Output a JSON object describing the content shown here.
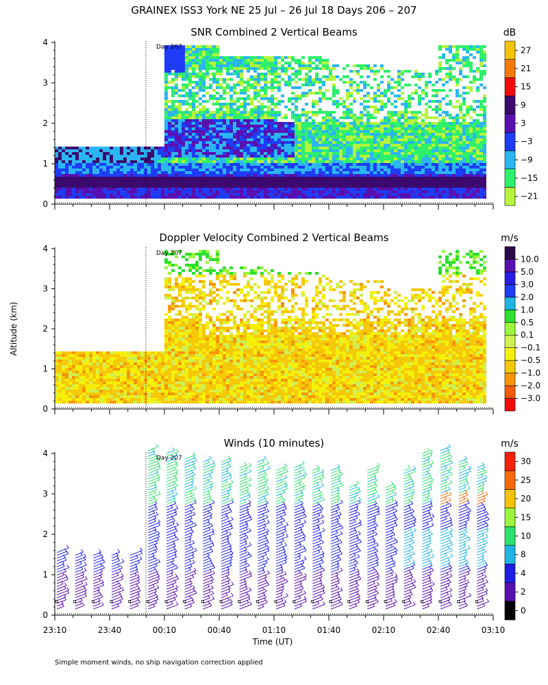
{
  "title": "GRAINEX ISS3 York NE  25 Jul – 26 Jul 18 Days 206 – 207",
  "footnote": "Simple moment winds, no ship navigation correction applied",
  "colors": {
    "snr": [
      "#b6f53c",
      "#2df06b",
      "#2bb6f2",
      "#1e3cf5",
      "#5a10b0",
      "#3c0a6e",
      "#f50a0a",
      "#f57a0a",
      "#f5c30a"
    ],
    "vel": [
      "#f50a0a",
      "#f55a0a",
      "#f5960a",
      "#f5c80a",
      "#f5f00a",
      "#d0f050",
      "#9cf53c",
      "#2de02d",
      "#1fb4e6",
      "#1e3cf5",
      "#2a1ae6",
      "#5a10b0",
      "#2a0a4a"
    ],
    "wind": [
      "#000000",
      "#5a10b0",
      "#1e1ee6",
      "#1fb4e6",
      "#2de06b",
      "#9cf53c",
      "#f5c30a",
      "#f56a0a",
      "#f51e0a"
    ]
  },
  "chart_data": [
    {
      "type": "heatmap",
      "id": "snr",
      "title": "SNR Combined 2 Vertical Beams",
      "ylabel": "",
      "ylim": [
        0,
        4
      ],
      "y_ticks": [
        "0",
        "1",
        "2",
        "3",
        "4"
      ],
      "x_ticks": [
        "23:10",
        "23:40",
        "00:10",
        "00:40",
        "01:10",
        "01:40",
        "02:10",
        "02:40",
        "03:10"
      ],
      "annotation": "Day 207",
      "colorbar_unit": "dB",
      "colorbar_labels": [
        "−21",
        "−15",
        "−9",
        "−3",
        "3",
        "9",
        "15",
        "21",
        "27"
      ],
      "layers": [
        {
          "time": "23:10",
          "base_km": 0.1,
          "top_km": 1.4,
          "near_surface_dB": 9,
          "mid_dB": -9,
          "upper_dB": -15
        },
        {
          "time": "23:40",
          "base_km": 0.1,
          "top_km": 1.4,
          "near_surface_dB": 9,
          "mid_dB": 3,
          "upper_dB": -9
        },
        {
          "time": "00:10",
          "base_km": 0.1,
          "top_km": 3.9,
          "near_surface_dB": 9,
          "mid_dB": 3,
          "upper_dB": -15
        },
        {
          "time": "00:40",
          "base_km": 0.1,
          "top_km": 3.6,
          "near_surface_dB": 9,
          "mid_dB": -3,
          "upper_dB": -15
        },
        {
          "time": "01:10",
          "base_km": 0.1,
          "top_km": 3.6,
          "near_surface_dB": 9,
          "mid_dB": -3,
          "upper_dB": -15
        },
        {
          "time": "01:40",
          "base_km": 0.1,
          "top_km": 3.4,
          "near_surface_dB": 9,
          "mid_dB": -9,
          "upper_dB": -15
        },
        {
          "time": "02:10",
          "base_km": 0.1,
          "top_km": 3.3,
          "near_surface_dB": 9,
          "mid_dB": -9,
          "upper_dB": -15
        },
        {
          "time": "02:40",
          "base_km": 0.1,
          "top_km": 3.9,
          "near_surface_dB": 9,
          "mid_dB": -3,
          "upper_dB": -15
        },
        {
          "time": "03:10",
          "base_km": 0.1,
          "top_km": 3.7,
          "near_surface_dB": 9,
          "mid_dB": -3,
          "upper_dB": -15
        }
      ]
    },
    {
      "type": "heatmap",
      "id": "vel",
      "title": "Doppler Velocity Combined 2 Vertical Beams",
      "ylabel": "Altitude (km)",
      "ylim": [
        0,
        4
      ],
      "y_ticks": [
        "0",
        "1",
        "2",
        "3",
        "4"
      ],
      "x_ticks": [
        "23:10",
        "23:40",
        "00:10",
        "00:40",
        "01:10",
        "01:40",
        "02:10",
        "02:40",
        "03:10"
      ],
      "annotation": "Day 207",
      "colorbar_unit": "m/s",
      "colorbar_labels": [
        "−3.0",
        "−2.0",
        "−1.0",
        "−0.5",
        "−0.1",
        "0.1",
        "0.5",
        "1.0",
        "2.0",
        "3.0",
        "5.0",
        "10.0"
      ],
      "layers": [
        {
          "time": "23:10",
          "base_km": 0.1,
          "top_km": 1.4,
          "typical_m_s": 0.1
        },
        {
          "time": "23:40",
          "base_km": 0.1,
          "top_km": 1.4,
          "typical_m_s": 0.1
        },
        {
          "time": "00:10",
          "base_km": 0.1,
          "top_km": 3.9,
          "typical_m_s": -0.5
        },
        {
          "time": "00:40",
          "base_km": 0.1,
          "top_km": 3.5,
          "typical_m_s": -0.5
        },
        {
          "time": "01:10",
          "base_km": 0.1,
          "top_km": 3.4,
          "typical_m_s": -0.5
        },
        {
          "time": "01:40",
          "base_km": 0.1,
          "top_km": 3.2,
          "typical_m_s": -0.5
        },
        {
          "time": "02:10",
          "base_km": 0.1,
          "top_km": 3.0,
          "typical_m_s": -0.5
        },
        {
          "time": "02:40",
          "base_km": 0.1,
          "top_km": 3.9,
          "typical_m_s": -0.1
        },
        {
          "time": "03:10",
          "base_km": 0.1,
          "top_km": 3.0,
          "typical_m_s": -0.5
        }
      ]
    },
    {
      "type": "scatter",
      "id": "winds",
      "title": "Winds (10 minutes)",
      "xlabel": "Time (UT)",
      "ylim": [
        0,
        4
      ],
      "y_ticks": [
        "0",
        "1",
        "2",
        "3",
        "4"
      ],
      "x_ticks": [
        "23:10",
        "23:40",
        "00:10",
        "00:40",
        "01:10",
        "01:40",
        "02:10",
        "02:40",
        "03:10"
      ],
      "annotation": "Day 207",
      "colorbar_unit": "m/s",
      "colorbar_labels": [
        "0",
        "2",
        "4",
        "8",
        "10",
        "15",
        "20",
        "25",
        "30"
      ],
      "profiles": [
        {
          "time": "23:10",
          "top_km": 1.6
        },
        {
          "time": "23:20",
          "top_km": 1.5
        },
        {
          "time": "23:30",
          "top_km": 1.5
        },
        {
          "time": "23:40",
          "top_km": 1.5
        },
        {
          "time": "23:50",
          "top_km": 1.5
        },
        {
          "time": "00:00",
          "top_km": 4.1
        },
        {
          "time": "00:10",
          "top_km": 4.0
        },
        {
          "time": "00:20",
          "top_km": 3.9
        },
        {
          "time": "00:30",
          "top_km": 3.8
        },
        {
          "time": "00:40",
          "top_km": 3.8
        },
        {
          "time": "00:50",
          "top_km": 3.7
        },
        {
          "time": "01:00",
          "top_km": 3.8
        },
        {
          "time": "01:10",
          "top_km": 3.6
        },
        {
          "time": "01:20",
          "top_km": 3.7
        },
        {
          "time": "01:30",
          "top_km": 3.6
        },
        {
          "time": "01:40",
          "top_km": 3.6
        },
        {
          "time": "01:50",
          "top_km": 3.2
        },
        {
          "time": "02:00",
          "top_km": 3.6
        },
        {
          "time": "02:10",
          "top_km": 3.2
        },
        {
          "time": "02:20",
          "top_km": 3.6
        },
        {
          "time": "02:30",
          "top_km": 4.0
        },
        {
          "time": "02:40",
          "top_km": 4.1
        },
        {
          "time": "02:50",
          "top_km": 3.8
        },
        {
          "time": "03:00",
          "top_km": 3.7
        }
      ]
    }
  ]
}
